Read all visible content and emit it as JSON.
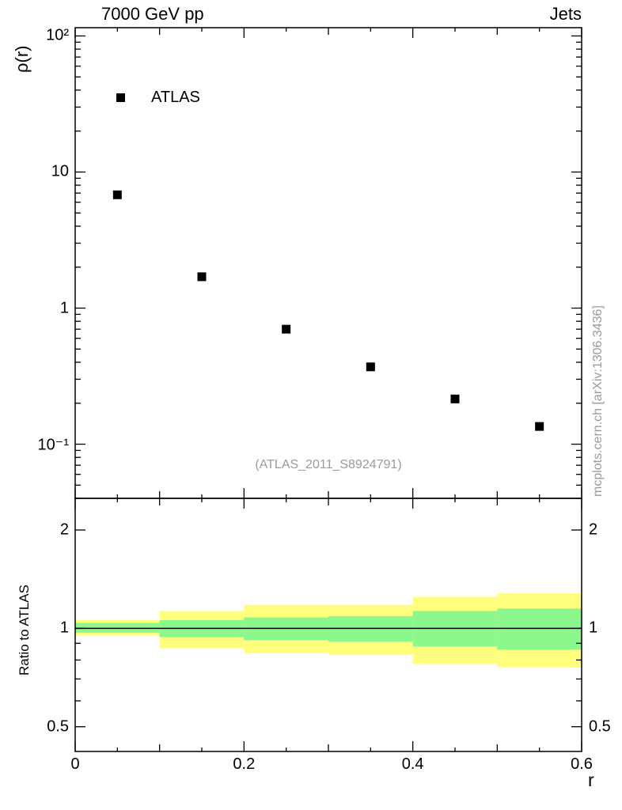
{
  "header": {
    "title_left": "7000 GeV pp",
    "title_right": "Jets"
  },
  "chart_data": {
    "type": "scatter",
    "title": "7000 GeV pp — Jets",
    "xlabel": "r",
    "ylabel_main": "ρ(r)",
    "ylabel_ratio": "Ratio to ATLAS",
    "legend_label": "ATLAS",
    "watermark": "(ATLAS_2011_S8924791)",
    "side_note": "mcplots.cern.ch [arXiv:1306.3436]",
    "x_range": [
      0,
      0.6
    ],
    "x_minor_step": 0.05,
    "x_major_ticks": [
      0,
      0.2,
      0.4,
      0.6
    ],
    "x_major_labels": [
      "0",
      "0.2",
      "0.4",
      "0.6"
    ],
    "main_panel": {
      "y_scale": "log",
      "y_range": [
        0.04,
        115
      ],
      "y_major_ticks": [
        0.1,
        1,
        10,
        100
      ],
      "y_major_labels": [
        "10⁻¹",
        "1",
        "10",
        "10²"
      ],
      "series": [
        {
          "name": "ATLAS",
          "marker": "filled-square",
          "color": "#000000",
          "x": [
            0.05,
            0.15,
            0.25,
            0.35,
            0.45,
            0.55
          ],
          "y": [
            6.8,
            1.7,
            0.7,
            0.37,
            0.215,
            0.135
          ]
        }
      ]
    },
    "ratio_panel": {
      "y_scale": "log",
      "y_range": [
        0.42,
        2.5
      ],
      "y_major_ticks": [
        0.5,
        1,
        2
      ],
      "y_major_labels": [
        "0.5",
        "1",
        "2"
      ],
      "reference_line": 1.0,
      "bands": {
        "bin_edges": [
          0,
          0.1,
          0.2,
          0.3,
          0.4,
          0.5,
          0.6
        ],
        "outer": {
          "name": "total-uncertainty-band",
          "color": "#ffff7d",
          "low": [
            0.95,
            0.87,
            0.84,
            0.83,
            0.78,
            0.76
          ],
          "high": [
            1.06,
            1.13,
            1.18,
            1.18,
            1.25,
            1.28
          ]
        },
        "inner": {
          "name": "stat-uncertainty-band",
          "color": "#8cf78c",
          "low": [
            0.97,
            0.94,
            0.92,
            0.91,
            0.88,
            0.86
          ],
          "high": [
            1.04,
            1.06,
            1.08,
            1.09,
            1.13,
            1.15
          ]
        }
      }
    },
    "colors": {
      "marker": "#000000",
      "band_outer": "#ffff7d",
      "band_inner": "#8cf78c",
      "muted_text": "#9a9a9a",
      "axis": "#000000"
    }
  }
}
